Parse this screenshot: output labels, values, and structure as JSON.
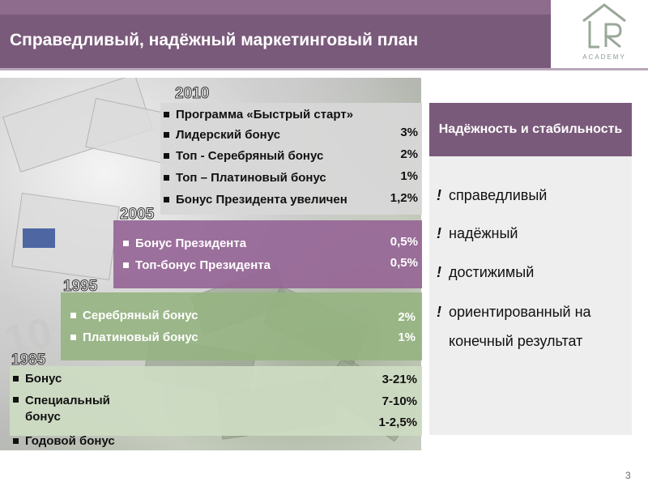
{
  "header": {
    "title": "Справедливый, надёжный маркетинговый план"
  },
  "logo": {
    "text": "ACADEMY"
  },
  "years": {
    "y2010": "2010",
    "y2005": "2005",
    "y1995": "1995",
    "y1985": "1985"
  },
  "panel_2010": {
    "items": [
      {
        "label": "Программа «Быстрый старт»",
        "value": ""
      },
      {
        "label": "Лидерский бонус",
        "value": "3%"
      },
      {
        "label": "Топ - Серебряный бонус",
        "value": "2%"
      },
      {
        "label": "Топ – Платиновый бонус",
        "value": "1%"
      },
      {
        "label": "Бонус Президента увеличен",
        "value": "1,2%"
      }
    ]
  },
  "panel_2005": {
    "items": [
      {
        "label": "Бонус Президента",
        "value": "0,5%"
      },
      {
        "label": "Топ-бонус Президента",
        "value": "0,5%"
      }
    ]
  },
  "panel_1995": {
    "items": [
      {
        "label": "Серебряный бонус",
        "value": "2%"
      },
      {
        "label": "Платиновый бонус",
        "value": "1%"
      }
    ]
  },
  "panel_1985": {
    "items": [
      {
        "label": "Бонус",
        "value": "3-21%"
      },
      {
        "label": "Специальный бонус",
        "value": "7-10%"
      },
      {
        "label": "Годовой бонус",
        "value": "1-2,5%"
      }
    ]
  },
  "right": {
    "heading": "Надёжность и стабильность",
    "marker": "!",
    "items": [
      "справедливый",
      "надёжный",
      "достижимый",
      "ориентированный на конечный результат"
    ]
  },
  "page_number": "3",
  "colors": {
    "brand_purple": "#7a5a7a",
    "green": "#96b482",
    "light_green": "#cddcc3"
  }
}
